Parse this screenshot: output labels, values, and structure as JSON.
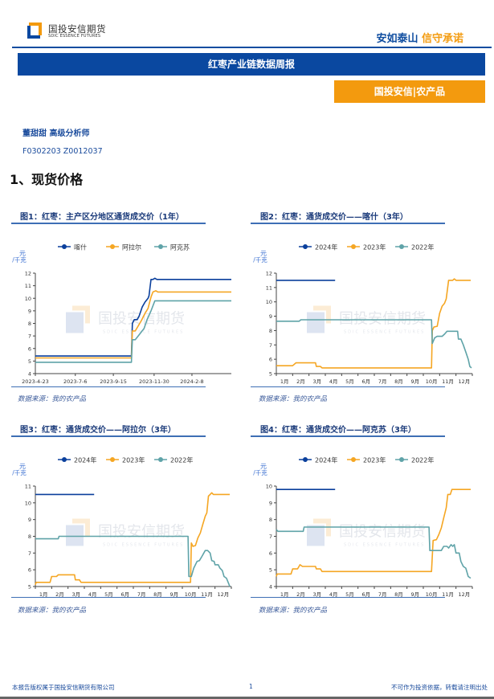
{
  "header": {
    "logo_cn": "国投安信期货",
    "logo_en": "SDIC ESSENCE FUTURES",
    "slogan_a": "安如泰山",
    "slogan_b": "信守承诺",
    "banner_title": "红枣产业链数据周报",
    "tag": "国投安信|农产品"
  },
  "analyst": {
    "name_title": "董甜甜 高级分析师",
    "cert": "F0302203 Z0012037"
  },
  "section_title": "1、现货价格",
  "colors": {
    "brand_blue": "#0a48a0",
    "brand_orange": "#f39a0e",
    "series_blue": "#0a3f9c",
    "series_orange": "#f5a623",
    "series_teal": "#5fa3a8"
  },
  "watermark": {
    "cn": "国投安信期货",
    "en": "SDIC ESSENCE FUTURES"
  },
  "figures": [
    {
      "title": "图1：红枣：主产区分地区通货成交价（1年）",
      "source": "数据来源：我的农产品"
    },
    {
      "title": "图2：红枣：通货成交价——喀什（3年）",
      "source": "数据来源：我的农产品"
    },
    {
      "title": "图3：红枣：通货成交价——阿拉尔（3年）",
      "source": "数据来源：我的农产品"
    },
    {
      "title": "图4：红枣：通货成交价——阿克苏（3年）",
      "source": "数据来源：我的农产品"
    }
  ],
  "footer": {
    "left": "本报告版权属于国投安信期货有限公司",
    "page": "1",
    "right": "不可作为投资依据，转载请注明出处"
  },
  "chart_data": [
    {
      "type": "line",
      "title": "图1：红枣：主产区分地区通货成交价（1年）",
      "ylabel": "元/千克",
      "ylim": [
        4,
        12
      ],
      "yticks": [
        4,
        5,
        6,
        7,
        8,
        9,
        10,
        11,
        12
      ],
      "xticks": [
        "2023-4-23",
        "2023-7-6",
        "2023-9-15",
        "2023-11-30",
        "2024-2-8"
      ],
      "xrange": [
        0,
        1
      ],
      "xtick_pos": [
        0,
        0.204,
        0.398,
        0.606,
        0.799
      ],
      "legend": [
        "喀什",
        "阿拉尔",
        "阿克苏"
      ],
      "series": [
        {
          "name": "喀什",
          "color": "#0a3f9c",
          "points": [
            [
              0,
              5.4
            ],
            [
              0.49,
              5.4
            ],
            [
              0.495,
              8.0
            ],
            [
              0.505,
              8.3
            ],
            [
              0.52,
              8.3
            ],
            [
              0.53,
              8.6
            ],
            [
              0.545,
              9.3
            ],
            [
              0.56,
              9.7
            ],
            [
              0.575,
              10.0
            ],
            [
              0.58,
              10.2
            ],
            [
              0.59,
              11.5
            ],
            [
              0.6,
              11.5
            ],
            [
              0.61,
              11.6
            ],
            [
              0.62,
              11.5
            ],
            [
              1,
              11.5
            ]
          ]
        },
        {
          "name": "阿拉尔",
          "color": "#f5a623",
          "points": [
            [
              0,
              5.25
            ],
            [
              0.49,
              5.25
            ],
            [
              0.495,
              7.4
            ],
            [
              0.51,
              7.4
            ],
            [
              0.525,
              7.8
            ],
            [
              0.54,
              8.2
            ],
            [
              0.56,
              8.8
            ],
            [
              0.575,
              9.2
            ],
            [
              0.59,
              10.1
            ],
            [
              0.6,
              10.5
            ],
            [
              0.615,
              10.6
            ],
            [
              0.625,
              10.5
            ],
            [
              1,
              10.5
            ]
          ]
        },
        {
          "name": "阿克苏",
          "color": "#5fa3a8",
          "points": [
            [
              0,
              4.9
            ],
            [
              0.49,
              4.9
            ],
            [
              0.495,
              6.7
            ],
            [
              0.51,
              6.7
            ],
            [
              0.525,
              7.0
            ],
            [
              0.54,
              7.3
            ],
            [
              0.555,
              7.6
            ],
            [
              0.57,
              8.3
            ],
            [
              0.59,
              9.0
            ],
            [
              0.61,
              9.8
            ],
            [
              1,
              9.8
            ]
          ]
        }
      ]
    },
    {
      "type": "line",
      "title": "图2：红枣：通货成交价——喀什（3年）",
      "ylabel": "元/千克",
      "ylim": [
        5,
        12
      ],
      "yticks": [
        5,
        6,
        7,
        8,
        9,
        10,
        11,
        12
      ],
      "xticks": [
        "1月",
        "2月",
        "3月",
        "4月",
        "5月",
        "6月",
        "7月",
        "8月",
        "9月",
        "10月",
        "11月",
        "12月"
      ],
      "legend": [
        "2024年",
        "2023年",
        "2022年"
      ],
      "series": [
        {
          "name": "2024年",
          "color": "#0a3f9c",
          "points": [
            [
              0,
              11.5
            ],
            [
              3.6,
              11.5
            ]
          ]
        },
        {
          "name": "2023年",
          "color": "#f5a623",
          "points": [
            [
              0,
              5.55
            ],
            [
              1,
              5.55
            ],
            [
              1.2,
              5.75
            ],
            [
              2.4,
              5.75
            ],
            [
              2.45,
              5.5
            ],
            [
              2.7,
              5.5
            ],
            [
              2.8,
              5.4
            ],
            [
              9.5,
              5.4
            ],
            [
              9.55,
              8.0
            ],
            [
              9.65,
              8.25
            ],
            [
              9.85,
              8.3
            ],
            [
              10.0,
              9.2
            ],
            [
              10.15,
              9.7
            ],
            [
              10.3,
              9.9
            ],
            [
              10.4,
              10.2
            ],
            [
              10.55,
              11.5
            ],
            [
              10.8,
              11.5
            ],
            [
              10.9,
              11.6
            ],
            [
              11.0,
              11.5
            ],
            [
              11.9,
              11.5
            ]
          ]
        },
        {
          "name": "2022年",
          "color": "#5fa3a8",
          "points": [
            [
              0,
              8.65
            ],
            [
              1.4,
              8.65
            ],
            [
              1.5,
              8.75
            ],
            [
              9.5,
              8.75
            ],
            [
              9.55,
              7.1
            ],
            [
              9.7,
              7.5
            ],
            [
              9.85,
              7.6
            ],
            [
              10.15,
              7.6
            ],
            [
              10.3,
              7.75
            ],
            [
              10.45,
              7.95
            ],
            [
              11.1,
              7.95
            ],
            [
              11.15,
              7.4
            ],
            [
              11.3,
              7.4
            ],
            [
              11.45,
              7.0
            ],
            [
              11.6,
              6.5
            ],
            [
              11.75,
              6.0
            ],
            [
              11.85,
              5.5
            ],
            [
              11.95,
              5.4
            ]
          ]
        }
      ]
    },
    {
      "type": "line",
      "title": "图3：红枣：通货成交价——阿拉尔（3年）",
      "ylabel": "元/千克",
      "ylim": [
        5,
        11
      ],
      "yticks": [
        5,
        6,
        7,
        8,
        9,
        10,
        11
      ],
      "xticks": [
        "1月",
        "2月",
        "3月",
        "4月",
        "5月",
        "6月",
        "7月",
        "8月",
        "9月",
        "10月",
        "11月",
        "12月"
      ],
      "legend": [
        "2024年",
        "2023年",
        "2022年"
      ],
      "series": [
        {
          "name": "2024年",
          "color": "#0a3f9c",
          "points": [
            [
              0,
              10.5
            ],
            [
              3.6,
              10.5
            ]
          ]
        },
        {
          "name": "2023年",
          "color": "#f5a623",
          "points": [
            [
              0,
              5.1
            ],
            [
              0.05,
              5.25
            ],
            [
              0.9,
              5.25
            ],
            [
              1.0,
              5.6
            ],
            [
              1.3,
              5.6
            ],
            [
              1.4,
              5.7
            ],
            [
              2.4,
              5.7
            ],
            [
              2.45,
              5.4
            ],
            [
              2.7,
              5.4
            ],
            [
              2.8,
              5.25
            ],
            [
              9.5,
              5.25
            ],
            [
              9.55,
              7.6
            ],
            [
              9.65,
              7.4
            ],
            [
              9.8,
              7.45
            ],
            [
              9.95,
              7.9
            ],
            [
              10.1,
              8.2
            ],
            [
              10.25,
              8.7
            ],
            [
              10.4,
              9.2
            ],
            [
              10.5,
              9.4
            ],
            [
              10.6,
              10.4
            ],
            [
              10.7,
              10.5
            ],
            [
              10.8,
              10.6
            ],
            [
              10.9,
              10.5
            ],
            [
              11.9,
              10.5
            ]
          ]
        },
        {
          "name": "2022年",
          "color": "#5fa3a8",
          "points": [
            [
              0,
              7.85
            ],
            [
              1.4,
              7.85
            ],
            [
              1.45,
              8.0
            ],
            [
              9.35,
              8.0
            ],
            [
              9.4,
              5.6
            ],
            [
              9.55,
              5.6
            ],
            [
              9.7,
              6.1
            ],
            [
              9.9,
              6.5
            ],
            [
              10.05,
              6.55
            ],
            [
              10.2,
              6.8
            ],
            [
              10.4,
              7.15
            ],
            [
              10.55,
              7.15
            ],
            [
              10.7,
              7.0
            ],
            [
              10.8,
              6.55
            ],
            [
              10.95,
              6.5
            ],
            [
              11.0,
              6.3
            ],
            [
              11.2,
              6.3
            ],
            [
              11.3,
              6.1
            ],
            [
              11.45,
              5.95
            ],
            [
              11.55,
              5.6
            ],
            [
              11.7,
              5.5
            ],
            [
              11.85,
              5.15
            ],
            [
              11.9,
              5.0
            ]
          ]
        }
      ]
    },
    {
      "type": "line",
      "title": "图4：红枣：通货成交价——阿克苏（3年）",
      "ylabel": "元/千克",
      "ylim": [
        4,
        10
      ],
      "yticks": [
        4,
        5,
        6,
        7,
        8,
        9,
        10
      ],
      "xticks": [
        "1月",
        "2月",
        "3月",
        "4月",
        "5月",
        "6月",
        "7月",
        "8月",
        "9月",
        "10月",
        "11月",
        "12月"
      ],
      "legend": [
        "2024年",
        "2023年",
        "2022年"
      ],
      "series": [
        {
          "name": "2024年",
          "color": "#0a3f9c",
          "points": [
            [
              0,
              9.8
            ],
            [
              3.6,
              9.8
            ]
          ]
        },
        {
          "name": "2023年",
          "color": "#f5a623",
          "points": [
            [
              0,
              4.6
            ],
            [
              0.05,
              4.75
            ],
            [
              0.9,
              4.75
            ],
            [
              1.0,
              5.05
            ],
            [
              1.3,
              5.05
            ],
            [
              1.45,
              5.3
            ],
            [
              1.6,
              5.2
            ],
            [
              2.4,
              5.2
            ],
            [
              2.45,
              5.05
            ],
            [
              2.7,
              5.05
            ],
            [
              2.8,
              4.9
            ],
            [
              9.5,
              4.9
            ],
            [
              9.6,
              6.75
            ],
            [
              9.8,
              6.8
            ],
            [
              9.95,
              7.1
            ],
            [
              10.1,
              7.5
            ],
            [
              10.25,
              8.1
            ],
            [
              10.4,
              8.7
            ],
            [
              10.5,
              9.5
            ],
            [
              10.65,
              9.5
            ],
            [
              10.75,
              9.8
            ],
            [
              11.9,
              9.8
            ]
          ]
        },
        {
          "name": "2022年",
          "color": "#5fa3a8",
          "points": [
            [
              0,
              7.4
            ],
            [
              0.1,
              7.3
            ],
            [
              1.65,
              7.3
            ],
            [
              1.7,
              7.55
            ],
            [
              9.35,
              7.55
            ],
            [
              9.4,
              6.15
            ],
            [
              10.1,
              6.15
            ],
            [
              10.25,
              6.4
            ],
            [
              10.45,
              6.4
            ],
            [
              10.55,
              6.3
            ],
            [
              10.7,
              6.5
            ],
            [
              10.8,
              6.4
            ],
            [
              10.9,
              6.5
            ],
            [
              11.0,
              6.0
            ],
            [
              11.2,
              6.0
            ],
            [
              11.3,
              5.5
            ],
            [
              11.45,
              5.2
            ],
            [
              11.6,
              5.1
            ],
            [
              11.75,
              4.6
            ],
            [
              11.9,
              4.5
            ]
          ]
        }
      ]
    }
  ]
}
